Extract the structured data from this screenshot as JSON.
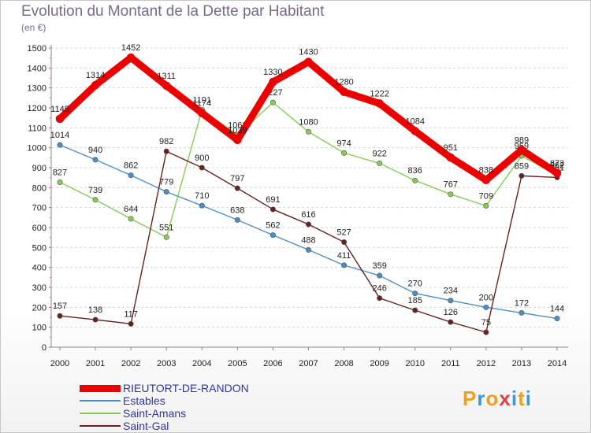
{
  "title": "Evolution du Montant de la Dette par Habitant",
  "unit": "(en €)",
  "logo": {
    "text": "Proxiti",
    "colors": [
      "#f0a020",
      "#3a9ad9",
      "#f0a020",
      "#e04040",
      "#3a9ad9",
      "#f0a020",
      "#3a9ad9"
    ]
  },
  "chart_data": {
    "type": "line",
    "title": "Evolution du Montant de la Dette par Habitant",
    "ylabel": "(en €)",
    "xlabel": "",
    "ylim": [
      0,
      1500
    ],
    "yticks": [
      0,
      100,
      200,
      300,
      400,
      500,
      600,
      700,
      800,
      900,
      1000,
      1100,
      1200,
      1300,
      1400,
      1500
    ],
    "categories": [
      "2000",
      "2001",
      "2002",
      "2003",
      "2004",
      "2005",
      "2006",
      "2007",
      "2008",
      "2009",
      "2010",
      "2011",
      "2012",
      "2013",
      "2014"
    ],
    "grid": true,
    "series": [
      {
        "name": "RIEUTORT-DE-RANDON",
        "color": "#ee0000",
        "values": [
          1145,
          1314,
          1452,
          1311,
          1174,
          1039,
          1330,
          1430,
          1280,
          1222,
          1084,
          951,
          838,
          989,
          873
        ],
        "labels": [
          "1145",
          "1314",
          "1452",
          "1311",
          "1174",
          "1039",
          "1330",
          "1430",
          "1280",
          "1222",
          "1084",
          "951",
          "838",
          "989",
          "873"
        ]
      },
      {
        "name": "Estables",
        "color": "#4a90c8",
        "values": [
          1014,
          940,
          862,
          779,
          710,
          638,
          562,
          488,
          411,
          359,
          270,
          234,
          200,
          172,
          144
        ],
        "labels": [
          "1014",
          "940",
          "862",
          "779",
          "710",
          "638",
          "562",
          "488",
          "411",
          "359",
          "270",
          "234",
          "200",
          "172",
          "144"
        ]
      },
      {
        "name": "Saint-Amans",
        "color": "#88cc55",
        "values": [
          827,
          739,
          644,
          551,
          1191,
          1063,
          1227,
          1080,
          974,
          922,
          836,
          767,
          709,
          959,
          862
        ],
        "labels": [
          "827",
          "739",
          "644",
          "551",
          "1191",
          "1063",
          "1227",
          "1080",
          "974",
          "922",
          "836",
          "767",
          "709",
          "959",
          "862"
        ]
      },
      {
        "name": "Saint-Gal",
        "color": "#6b2020",
        "values": [
          157,
          138,
          117,
          982,
          900,
          797,
          691,
          616,
          527,
          246,
          185,
          126,
          75,
          859,
          851
        ],
        "labels": [
          "157",
          "138",
          "117",
          "982",
          "900",
          "797",
          "691",
          "616",
          "527",
          "246",
          "185",
          "126",
          "75",
          "859",
          "851"
        ]
      }
    ]
  }
}
